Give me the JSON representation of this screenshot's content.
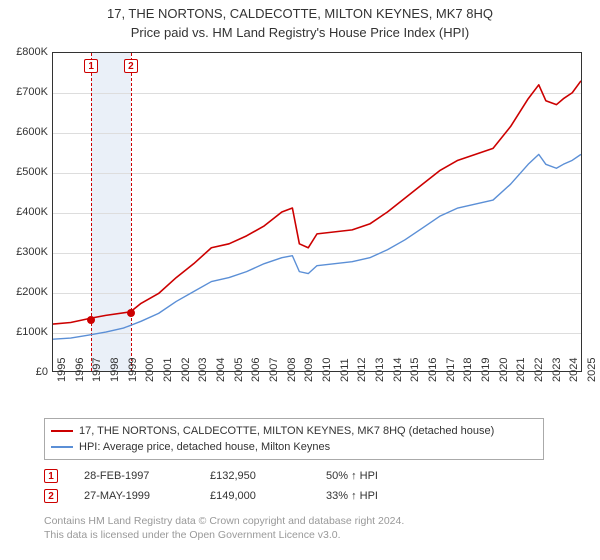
{
  "title": {
    "main": "17, THE NORTONS, CALDECOTTE, MILTON KEYNES, MK7 8HQ",
    "sub": "Price paid vs. HM Land Registry's House Price Index (HPI)"
  },
  "chart": {
    "type": "line",
    "background_color": "#ffffff",
    "grid_color": "#dddddd",
    "border_color": "#333333",
    "x_range": [
      1995,
      2025
    ],
    "x_ticks": [
      1995,
      1996,
      1997,
      1998,
      1999,
      2000,
      2001,
      2002,
      2003,
      2004,
      2005,
      2006,
      2007,
      2008,
      2009,
      2010,
      2011,
      2012,
      2013,
      2014,
      2015,
      2016,
      2017,
      2018,
      2019,
      2020,
      2021,
      2022,
      2023,
      2024,
      2025
    ],
    "y_range": [
      0,
      800000
    ],
    "y_ticks": [
      0,
      100000,
      200000,
      300000,
      400000,
      500000,
      600000,
      700000,
      800000
    ],
    "y_tick_labels": [
      "£0",
      "£100K",
      "£200K",
      "£300K",
      "£400K",
      "£500K",
      "£600K",
      "£700K",
      "£800K"
    ],
    "label_fontsize": 11,
    "band": {
      "start": 1997.16,
      "end": 1999.41,
      "color": "#eaf0f8"
    },
    "events": [
      {
        "n": "1",
        "year": 1997.16,
        "price": 132950
      },
      {
        "n": "2",
        "year": 1999.41,
        "price": 149000
      }
    ],
    "series": [
      {
        "name": "17, THE NORTONS, CALDECOTTE, MILTON KEYNES, MK7 8HQ (detached house)",
        "color": "#cc0000",
        "line_width": 1.6,
        "data": [
          [
            1995.0,
            118
          ],
          [
            1996.0,
            122
          ],
          [
            1997.16,
            133
          ],
          [
            1998.0,
            140
          ],
          [
            1999.41,
            149
          ],
          [
            2000.0,
            170
          ],
          [
            2001.0,
            195
          ],
          [
            2002.0,
            235
          ],
          [
            2003.0,
            270
          ],
          [
            2004.0,
            310
          ],
          [
            2005.0,
            320
          ],
          [
            2006.0,
            340
          ],
          [
            2007.0,
            365
          ],
          [
            2008.0,
            400
          ],
          [
            2008.6,
            410
          ],
          [
            2009.0,
            320
          ],
          [
            2009.5,
            310
          ],
          [
            2010.0,
            345
          ],
          [
            2011.0,
            350
          ],
          [
            2012.0,
            355
          ],
          [
            2013.0,
            370
          ],
          [
            2014.0,
            400
          ],
          [
            2015.0,
            435
          ],
          [
            2016.0,
            470
          ],
          [
            2017.0,
            505
          ],
          [
            2018.0,
            530
          ],
          [
            2019.0,
            545
          ],
          [
            2020.0,
            560
          ],
          [
            2021.0,
            615
          ],
          [
            2022.0,
            685
          ],
          [
            2022.6,
            720
          ],
          [
            2023.0,
            680
          ],
          [
            2023.6,
            670
          ],
          [
            2024.0,
            685
          ],
          [
            2024.5,
            700
          ],
          [
            2025.0,
            730
          ]
        ]
      },
      {
        "name": "HPI: Average price, detached house, Milton Keynes",
        "color": "#5b8fd6",
        "line_width": 1.4,
        "data": [
          [
            1995.0,
            80
          ],
          [
            1996.0,
            83
          ],
          [
            1997.0,
            90
          ],
          [
            1998.0,
            98
          ],
          [
            1999.0,
            108
          ],
          [
            2000.0,
            125
          ],
          [
            2001.0,
            145
          ],
          [
            2002.0,
            175
          ],
          [
            2003.0,
            200
          ],
          [
            2004.0,
            225
          ],
          [
            2005.0,
            235
          ],
          [
            2006.0,
            250
          ],
          [
            2007.0,
            270
          ],
          [
            2008.0,
            285
          ],
          [
            2008.6,
            290
          ],
          [
            2009.0,
            250
          ],
          [
            2009.5,
            245
          ],
          [
            2010.0,
            265
          ],
          [
            2011.0,
            270
          ],
          [
            2012.0,
            275
          ],
          [
            2013.0,
            285
          ],
          [
            2014.0,
            305
          ],
          [
            2015.0,
            330
          ],
          [
            2016.0,
            360
          ],
          [
            2017.0,
            390
          ],
          [
            2018.0,
            410
          ],
          [
            2019.0,
            420
          ],
          [
            2020.0,
            430
          ],
          [
            2021.0,
            470
          ],
          [
            2022.0,
            520
          ],
          [
            2022.6,
            545
          ],
          [
            2023.0,
            520
          ],
          [
            2023.6,
            510
          ],
          [
            2024.0,
            520
          ],
          [
            2024.5,
            530
          ],
          [
            2025.0,
            545
          ]
        ]
      }
    ]
  },
  "legend": {
    "border_color": "#aaaaaa",
    "items": [
      {
        "color": "#cc0000",
        "label": "17, THE NORTONS, CALDECOTTE, MILTON KEYNES, MK7 8HQ (detached house)"
      },
      {
        "color": "#5b8fd6",
        "label": "HPI: Average price, detached house, Milton Keynes"
      }
    ]
  },
  "transactions": [
    {
      "n": "1",
      "date": "28-FEB-1997",
      "price": "£132,950",
      "hpi": "50% ↑ HPI"
    },
    {
      "n": "2",
      "date": "27-MAY-1999",
      "price": "£149,000",
      "hpi": "33% ↑ HPI"
    }
  ],
  "footer": {
    "line1": "Contains HM Land Registry data © Crown copyright and database right 2024.",
    "line2": "This data is licensed under the Open Government Licence v3.0."
  }
}
